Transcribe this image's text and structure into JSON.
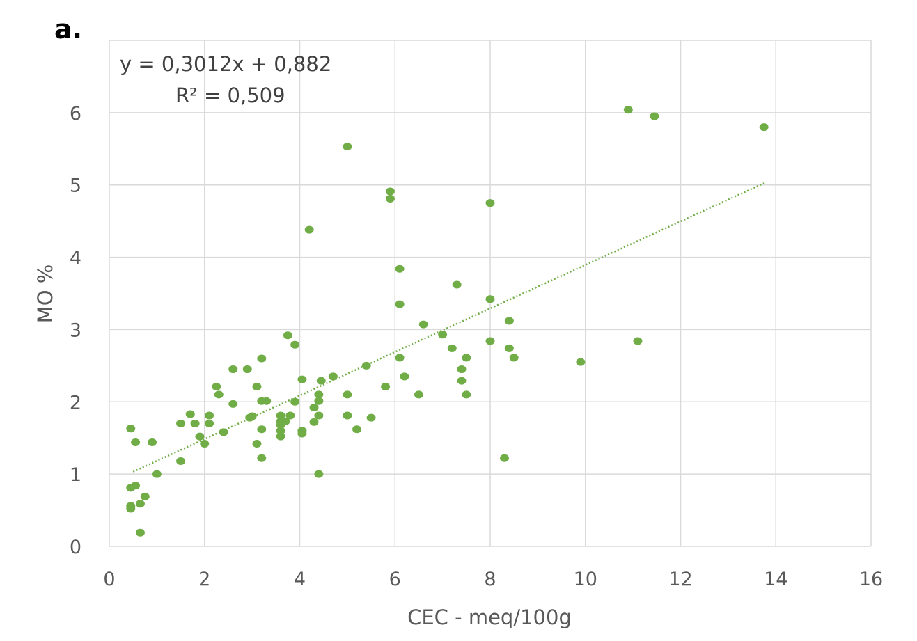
{
  "panel_label": "a.",
  "colors": {
    "point": "#70AD47",
    "trendline": "#70AD47",
    "grid": "#d9d9d9",
    "text": "#595959"
  },
  "chart_data": {
    "type": "scatter",
    "title": "",
    "xlabel": "CEC - meq/100g",
    "ylabel": "MO %",
    "xlim": [
      0,
      16
    ],
    "ylim": [
      0,
      7
    ],
    "xticks": [
      0,
      2,
      4,
      6,
      8,
      10,
      12,
      14,
      16
    ],
    "xtick_labels": [
      "0",
      "2",
      "4",
      "6",
      "8",
      "10",
      "12",
      "14",
      "16"
    ],
    "yticks": [
      0,
      1,
      2,
      3,
      4,
      5,
      6
    ],
    "ytick_labels": [
      "0",
      "1",
      "2",
      "3",
      "4",
      "5",
      "6"
    ],
    "grid": true,
    "legend": "none",
    "annotations": {
      "equation": "y = 0,3012x + 0,882",
      "r_squared": "R² = 0,509"
    },
    "trendline": {
      "type": "linear",
      "style": "dotted",
      "slope": 0.3012,
      "intercept": 0.882,
      "x_start": 0.5,
      "x_end": 13.75
    },
    "points": [
      [
        0.45,
        1.63
      ],
      [
        0.55,
        1.44
      ],
      [
        0.45,
        0.81
      ],
      [
        0.55,
        0.84
      ],
      [
        0.45,
        0.56
      ],
      [
        0.45,
        0.52
      ],
      [
        0.65,
        0.59
      ],
      [
        0.75,
        0.69
      ],
      [
        0.65,
        0.19
      ],
      [
        0.9,
        1.44
      ],
      [
        1.0,
        1.0
      ],
      [
        1.5,
        1.7
      ],
      [
        1.5,
        1.18
      ],
      [
        1.7,
        1.83
      ],
      [
        1.8,
        1.7
      ],
      [
        1.9,
        1.52
      ],
      [
        2.0,
        1.42
      ],
      [
        2.1,
        1.81
      ],
      [
        2.1,
        1.7
      ],
      [
        2.25,
        2.21
      ],
      [
        2.3,
        2.1
      ],
      [
        2.4,
        1.58
      ],
      [
        2.6,
        2.45
      ],
      [
        2.6,
        1.97
      ],
      [
        2.9,
        2.45
      ],
      [
        2.95,
        1.78
      ],
      [
        3.0,
        1.8
      ],
      [
        3.1,
        2.21
      ],
      [
        3.1,
        1.42
      ],
      [
        3.2,
        2.6
      ],
      [
        3.2,
        2.01
      ],
      [
        3.2,
        1.62
      ],
      [
        3.2,
        1.22
      ],
      [
        3.3,
        2.01
      ],
      [
        3.6,
        1.81
      ],
      [
        3.6,
        1.73
      ],
      [
        3.6,
        1.68
      ],
      [
        3.6,
        1.6
      ],
      [
        3.6,
        1.52
      ],
      [
        3.7,
        1.73
      ],
      [
        3.75,
        2.92
      ],
      [
        3.8,
        1.81
      ],
      [
        3.9,
        2.79
      ],
      [
        3.9,
        2.0
      ],
      [
        4.05,
        2.31
      ],
      [
        4.05,
        1.6
      ],
      [
        4.05,
        1.56
      ],
      [
        4.2,
        4.38
      ],
      [
        4.3,
        1.92
      ],
      [
        4.3,
        1.72
      ],
      [
        4.4,
        2.1
      ],
      [
        4.4,
        2.01
      ],
      [
        4.4,
        1.81
      ],
      [
        4.4,
        1.0
      ],
      [
        4.45,
        2.29
      ],
      [
        4.7,
        2.35
      ],
      [
        5.0,
        5.53
      ],
      [
        5.0,
        2.1
      ],
      [
        5.0,
        1.81
      ],
      [
        5.2,
        1.62
      ],
      [
        5.4,
        2.5
      ],
      [
        5.5,
        1.78
      ],
      [
        5.8,
        2.21
      ],
      [
        5.9,
        4.91
      ],
      [
        5.9,
        4.81
      ],
      [
        6.1,
        3.84
      ],
      [
        6.1,
        3.35
      ],
      [
        6.1,
        2.61
      ],
      [
        6.2,
        2.35
      ],
      [
        6.5,
        2.1
      ],
      [
        6.6,
        3.07
      ],
      [
        7.0,
        2.93
      ],
      [
        7.2,
        2.74
      ],
      [
        7.3,
        3.62
      ],
      [
        7.4,
        2.45
      ],
      [
        7.4,
        2.29
      ],
      [
        7.5,
        2.61
      ],
      [
        7.5,
        2.1
      ],
      [
        8.0,
        4.75
      ],
      [
        8.0,
        3.42
      ],
      [
        8.0,
        2.84
      ],
      [
        8.3,
        1.22
      ],
      [
        8.4,
        3.12
      ],
      [
        8.4,
        2.74
      ],
      [
        8.5,
        2.61
      ],
      [
        9.9,
        2.55
      ],
      [
        10.9,
        6.04
      ],
      [
        11.1,
        2.84
      ],
      [
        11.45,
        5.95
      ],
      [
        13.75,
        5.8
      ]
    ]
  }
}
